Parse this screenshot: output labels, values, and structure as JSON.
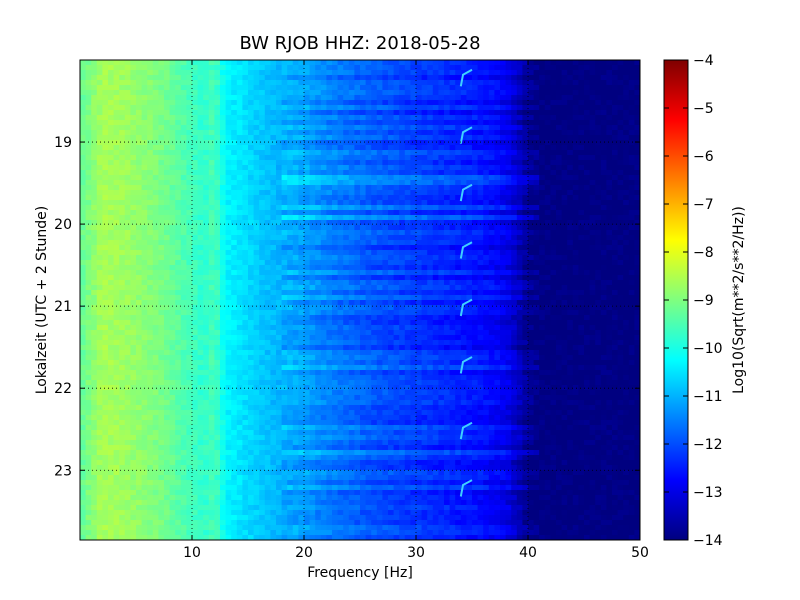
{
  "chart_data": {
    "type": "heatmap",
    "title": "BW RJOB HHZ: 2018-05-28",
    "xlabel": "Frequency [Hz]",
    "ylabel": "Lokalzeit (UTC + 2 Stunde)",
    "xlim": [
      0,
      50
    ],
    "ylim": [
      18.0,
      23.85
    ],
    "y_inverted": true,
    "grid": true,
    "x_ticks": [
      10,
      20,
      30,
      40,
      50
    ],
    "y_ticks": [
      19,
      20,
      21,
      22,
      23
    ],
    "colorbar": {
      "label": "Log10(Sqrt(m**2/s**2/Hz))",
      "range": [
        -14,
        -4
      ],
      "ticks": [
        -14,
        -13,
        -12,
        -11,
        -10,
        -9,
        -8,
        -7,
        -6,
        -5,
        -4
      ],
      "colormap": "jet"
    },
    "spectral_profile": {
      "frequency_hz": [
        0,
        2,
        4,
        6,
        8,
        10,
        11,
        12,
        13,
        15,
        17,
        20,
        23,
        26,
        30,
        33,
        36,
        38,
        39,
        40,
        41,
        42,
        50
      ],
      "log10_value": [
        -9.3,
        -8.6,
        -8.7,
        -8.9,
        -9.2,
        -9.6,
        -9.8,
        -9.5,
        -10.3,
        -10.6,
        -10.9,
        -11.2,
        -11.6,
        -11.9,
        -12.2,
        -12.4,
        -12.6,
        -12.9,
        -13.3,
        -13.8,
        -14.0,
        -14.0,
        -14.0
      ]
    },
    "narrowband_feature": {
      "frequency_hz": [
        34,
        35
      ],
      "repeat_times_hours": [
        18.2,
        18.9,
        19.6,
        20.3,
        21.0,
        21.7,
        22.5,
        23.2
      ]
    }
  }
}
